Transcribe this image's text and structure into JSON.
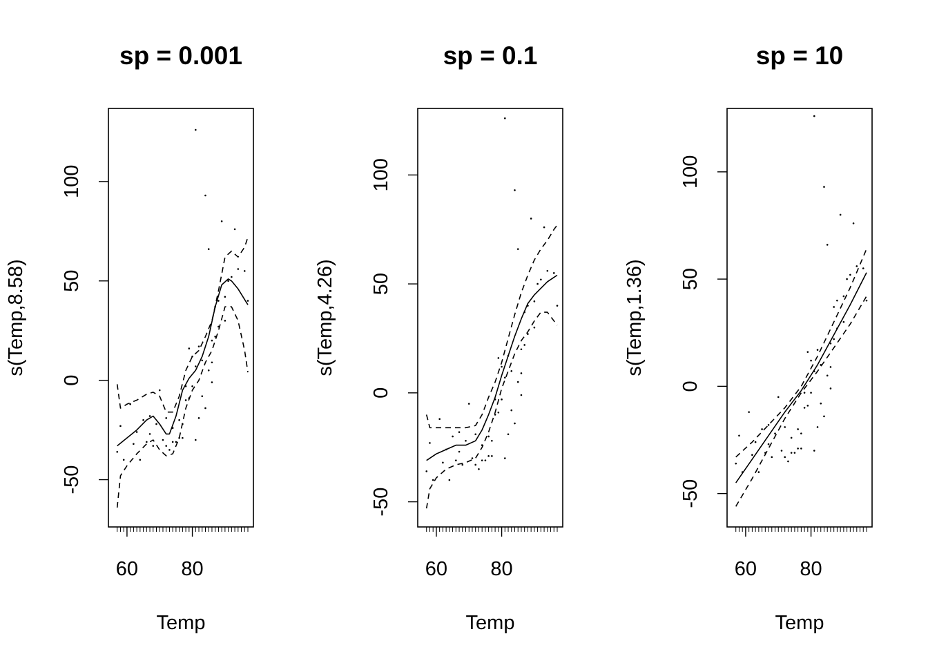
{
  "chart_data": [
    {
      "type": "line",
      "title": "sp = 0.001",
      "xlabel": "Temp",
      "ylabel": "s(Temp,8.58)",
      "xlim": [
        56,
        97
      ],
      "ylim": [
        -71,
        134
      ],
      "xticks": [
        60,
        80
      ],
      "xtick_labels": [
        "60",
        "80"
      ],
      "yticks": [
        -50,
        0,
        50,
        100
      ],
      "ytick_labels": [
        "-50",
        "0",
        "50",
        "100"
      ],
      "rug_x": [
        57,
        58,
        59,
        60,
        61,
        62,
        63,
        64,
        65,
        66,
        67,
        68,
        69,
        70,
        71,
        72,
        73,
        74,
        75,
        76,
        77,
        78,
        79,
        80,
        81,
        82,
        83,
        84,
        85,
        86,
        87,
        88,
        89,
        90,
        91,
        92,
        93,
        94,
        95,
        96,
        97
      ],
      "series": [
        {
          "style": "solid",
          "x": [
            57,
            60,
            63,
            66,
            68,
            70,
            72,
            73,
            75,
            77,
            79,
            81,
            83,
            85,
            87,
            89,
            91,
            92,
            94,
            97
          ],
          "y": [
            -33,
            -29,
            -25,
            -20,
            -18,
            -22,
            -27,
            -27,
            -18,
            -5,
            1,
            5,
            12,
            22,
            37,
            48,
            51,
            50,
            46,
            38
          ]
        },
        {
          "style": "dashed",
          "x": [
            57,
            58,
            60,
            63,
            66,
            68,
            70,
            72,
            74,
            76,
            78,
            80,
            82,
            84,
            86,
            88,
            90,
            92,
            94,
            96,
            97
          ],
          "y": [
            -2,
            -14,
            -12,
            -10,
            -7,
            -6,
            -8,
            -16,
            -16,
            -8,
            5,
            12,
            15,
            22,
            30,
            45,
            62,
            65,
            62,
            67,
            72
          ]
        },
        {
          "style": "dashed",
          "x": [
            57,
            58,
            60,
            63,
            66,
            68,
            70,
            72,
            74,
            76,
            78,
            80,
            82,
            84,
            86,
            88,
            90,
            92,
            94,
            96,
            97
          ],
          "y": [
            -64,
            -48,
            -43,
            -37,
            -32,
            -30,
            -35,
            -38,
            -37,
            -29,
            -14,
            -5,
            0,
            9,
            15,
            25,
            37,
            37,
            30,
            15,
            4
          ]
        }
      ],
      "points": {
        "x": [
          57,
          58,
          59,
          61,
          62,
          63,
          64,
          65,
          66,
          67,
          67,
          68,
          69,
          70,
          71,
          72,
          72,
          73,
          74,
          74,
          75,
          76,
          76,
          77,
          77,
          78,
          78,
          79,
          79,
          80,
          80,
          81,
          81,
          81,
          82,
          82,
          83,
          83,
          84,
          84,
          85,
          85,
          86,
          86,
          86,
          87,
          87,
          88,
          88,
          89,
          90,
          90,
          91,
          92,
          93,
          94,
          96,
          97
        ],
        "y": [
          -36,
          -23,
          -40,
          -12,
          -32,
          -26,
          -40,
          -20,
          -31,
          -18,
          -27,
          -33,
          -22,
          -5,
          -30,
          -33,
          -19,
          -35,
          -24,
          -31,
          -31,
          -20,
          -29,
          -22,
          -29,
          -3,
          -10,
          16,
          -9,
          12,
          -3,
          126,
          -30,
          7,
          17,
          -19,
          -8,
          10,
          93,
          -14,
          66,
          5,
          -1,
          9,
          20,
          37,
          22,
          40,
          27,
          80,
          30,
          42,
          50,
          52,
          76,
          56,
          55,
          40
        ]
      }
    },
    {
      "type": "line",
      "title": "sp = 0.1",
      "xlabel": "Temp",
      "ylabel": "s(Temp,4.26)",
      "xlim": [
        56,
        97
      ],
      "ylim": [
        -59,
        128
      ],
      "xticks": [
        60,
        80
      ],
      "xtick_labels": [
        "60",
        "80"
      ],
      "yticks": [
        -50,
        0,
        50,
        100
      ],
      "ytick_labels": [
        "-50",
        "0",
        "50",
        "100"
      ],
      "rug_x": [
        57,
        58,
        59,
        60,
        61,
        62,
        63,
        64,
        65,
        66,
        67,
        68,
        69,
        70,
        71,
        72,
        73,
        74,
        75,
        76,
        77,
        78,
        79,
        80,
        81,
        82,
        83,
        84,
        85,
        86,
        87,
        88,
        89,
        90,
        91,
        92,
        93,
        94,
        95,
        96,
        97
      ],
      "series": [
        {
          "style": "solid",
          "x": [
            57,
            60,
            63,
            66,
            69,
            72,
            74,
            76,
            78,
            80,
            82,
            84,
            86,
            88,
            90,
            92,
            94,
            96,
            97
          ],
          "y": [
            -31,
            -28,
            -26,
            -24,
            -24,
            -22,
            -17,
            -10,
            -2,
            8,
            17,
            26,
            34,
            41,
            45,
            48,
            51,
            53,
            54
          ]
        },
        {
          "style": "dashed",
          "x": [
            57,
            58,
            60,
            63,
            66,
            69,
            72,
            74,
            76,
            78,
            80,
            82,
            84,
            86,
            88,
            90,
            92,
            94,
            96,
            97
          ],
          "y": [
            -10,
            -16,
            -16,
            -16,
            -16,
            -16,
            -15,
            -10,
            -2,
            5,
            14,
            25,
            36,
            46,
            54,
            61,
            66,
            70,
            75,
            77
          ]
        },
        {
          "style": "dashed",
          "x": [
            57,
            58,
            60,
            63,
            66,
            69,
            72,
            74,
            76,
            78,
            80,
            82,
            84,
            86,
            88,
            90,
            92,
            94,
            96,
            97
          ],
          "y": [
            -53,
            -44,
            -39,
            -35,
            -33,
            -32,
            -30,
            -25,
            -18,
            -9,
            2,
            10,
            18,
            24,
            28,
            33,
            37,
            37,
            33,
            31
          ]
        }
      ],
      "points": {
        "x": [
          57,
          58,
          59,
          61,
          62,
          63,
          64,
          65,
          66,
          67,
          67,
          68,
          69,
          70,
          71,
          72,
          72,
          73,
          74,
          74,
          75,
          76,
          76,
          77,
          77,
          78,
          78,
          79,
          79,
          80,
          80,
          81,
          81,
          81,
          82,
          82,
          83,
          83,
          84,
          84,
          85,
          85,
          86,
          86,
          86,
          87,
          87,
          88,
          88,
          89,
          90,
          90,
          91,
          92,
          93,
          94,
          96,
          97
        ],
        "y": [
          -36,
          -23,
          -40,
          -12,
          -32,
          -26,
          -40,
          -20,
          -31,
          -18,
          -27,
          -33,
          -22,
          -5,
          -30,
          -33,
          -19,
          -35,
          -24,
          -31,
          -31,
          -20,
          -29,
          -22,
          -29,
          -3,
          -10,
          16,
          -9,
          12,
          -3,
          126,
          -30,
          7,
          17,
          -19,
          -8,
          10,
          93,
          -14,
          66,
          5,
          -1,
          9,
          20,
          37,
          22,
          40,
          27,
          80,
          30,
          42,
          50,
          52,
          76,
          56,
          55,
          40
        ]
      }
    },
    {
      "type": "line",
      "title": "sp = 10",
      "xlabel": "Temp",
      "ylabel": "s(Temp,1.36)",
      "xlim": [
        56,
        97
      ],
      "ylim": [
        -63,
        127
      ],
      "xticks": [
        60,
        80
      ],
      "xtick_labels": [
        "60",
        "80"
      ],
      "yticks": [
        -50,
        0,
        50,
        100
      ],
      "ytick_labels": [
        "-50",
        "0",
        "50",
        "100"
      ],
      "rug_x": [
        57,
        58,
        59,
        60,
        61,
        62,
        63,
        64,
        65,
        66,
        67,
        68,
        69,
        70,
        71,
        72,
        73,
        74,
        75,
        76,
        77,
        78,
        79,
        80,
        81,
        82,
        83,
        84,
        85,
        86,
        87,
        88,
        89,
        90,
        91,
        92,
        93,
        94,
        95,
        96,
        97
      ],
      "series": [
        {
          "style": "solid",
          "x": [
            57,
            62,
            67,
            72,
            77,
            82,
            87,
            92,
            97
          ],
          "y": [
            -45,
            -34,
            -23,
            -12,
            -2,
            10,
            24,
            38,
            53
          ]
        },
        {
          "style": "dashed",
          "x": [
            57,
            62,
            67,
            72,
            77,
            82,
            87,
            92,
            97
          ],
          "y": [
            -33,
            -26,
            -18,
            -10,
            0,
            14,
            30,
            46,
            64
          ]
        },
        {
          "style": "dashed",
          "x": [
            57,
            62,
            67,
            72,
            77,
            82,
            87,
            92,
            97
          ],
          "y": [
            -56,
            -43,
            -29,
            -15,
            -3,
            7,
            18,
            29,
            42
          ]
        }
      ],
      "points": {
        "x": [
          57,
          58,
          59,
          61,
          62,
          63,
          64,
          65,
          66,
          67,
          67,
          68,
          69,
          70,
          71,
          72,
          72,
          73,
          74,
          74,
          75,
          76,
          76,
          77,
          77,
          78,
          78,
          79,
          79,
          80,
          80,
          81,
          81,
          81,
          82,
          82,
          83,
          83,
          84,
          84,
          85,
          85,
          86,
          86,
          86,
          87,
          87,
          88,
          88,
          89,
          90,
          90,
          91,
          92,
          93,
          94,
          96,
          97
        ],
        "y": [
          -36,
          -23,
          -40,
          -12,
          -32,
          -26,
          -40,
          -20,
          -31,
          -18,
          -27,
          -33,
          -22,
          -5,
          -30,
          -33,
          -19,
          -35,
          -24,
          -31,
          -31,
          -20,
          -29,
          -22,
          -29,
          -3,
          -10,
          16,
          -9,
          12,
          -3,
          126,
          -30,
          7,
          17,
          -19,
          -8,
          10,
          93,
          -14,
          66,
          5,
          -1,
          9,
          20,
          37,
          22,
          40,
          27,
          80,
          30,
          42,
          50,
          52,
          76,
          56,
          55,
          40
        ]
      }
    }
  ]
}
